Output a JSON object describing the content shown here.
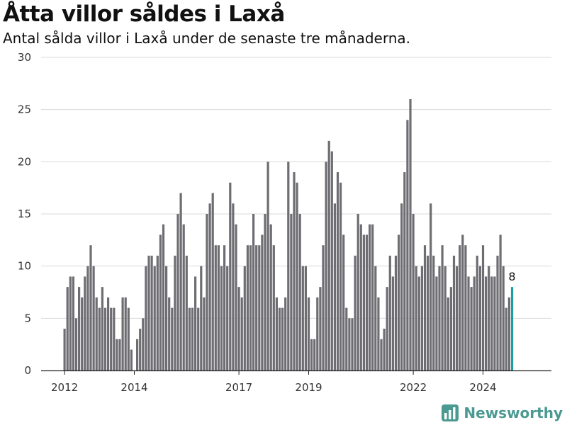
{
  "header": {
    "title": "Åtta villor såldes i Laxå",
    "subtitle": "Antal sålda villor i Laxå under de senaste tre månaderna."
  },
  "brand": {
    "name": "Newsworthy",
    "color": "#4a9a92"
  },
  "chart_data": {
    "type": "bar",
    "ylim": [
      0,
      30
    ],
    "yticks": [
      0,
      5,
      10,
      15,
      20,
      25,
      30
    ],
    "x_tick_labels": [
      "2012",
      "2014",
      "2017",
      "2019",
      "2022",
      "2024"
    ],
    "x_tick_indices": [
      0,
      24,
      60,
      84,
      120,
      144
    ],
    "grid": true,
    "bar_color": "#6e6d72",
    "highlight_color": "#1a9e9e",
    "highlight_label": "8",
    "values": [
      4,
      8,
      9,
      9,
      5,
      8,
      7,
      9,
      10,
      12,
      10,
      7,
      6,
      8,
      6,
      7,
      6,
      6,
      3,
      3,
      7,
      7,
      6,
      2,
      0,
      3,
      4,
      5,
      10,
      11,
      11,
      10,
      11,
      13,
      14,
      10,
      7,
      6,
      11,
      15,
      17,
      14,
      11,
      6,
      6,
      9,
      6,
      10,
      7,
      15,
      16,
      17,
      12,
      12,
      10,
      12,
      10,
      18,
      16,
      14,
      8,
      7,
      10,
      12,
      12,
      15,
      12,
      12,
      13,
      15,
      20,
      14,
      12,
      7,
      6,
      6,
      7,
      20,
      15,
      19,
      18,
      15,
      10,
      10,
      7,
      3,
      3,
      7,
      8,
      12,
      20,
      22,
      21,
      16,
      19,
      18,
      13,
      6,
      5,
      5,
      11,
      15,
      14,
      13,
      13,
      14,
      14,
      10,
      7,
      3,
      4,
      8,
      11,
      9,
      11,
      13,
      16,
      19,
      24,
      26,
      15,
      10,
      9,
      10,
      12,
      11,
      16,
      11,
      9,
      10,
      12,
      10,
      7,
      8,
      11,
      10,
      12,
      13,
      12,
      9,
      8,
      9,
      11,
      10,
      12,
      9,
      10,
      9,
      9,
      11,
      13,
      10,
      6,
      7,
      8
    ]
  }
}
